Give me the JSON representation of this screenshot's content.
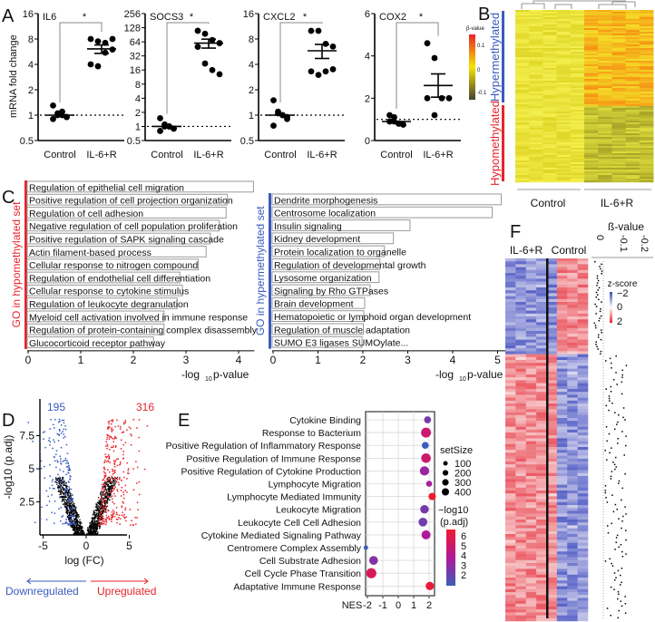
{
  "panels": {
    "A": "A",
    "B": "B",
    "C": "C",
    "D": "D",
    "E": "E",
    "F": "F"
  },
  "chart_data": [
    {
      "id": "A",
      "type": "scatter",
      "ylabel": "mRNA fold change",
      "categories": [
        "Control",
        "IL-6+R"
      ],
      "significance": "*",
      "plots": [
        {
          "title": "IL6",
          "scale": "log2",
          "ylim": [
            0.5,
            16
          ],
          "ticks": [
            "0.5",
            "1",
            "2",
            "4",
            "8",
            "16"
          ],
          "tickvals": [
            0.5,
            1,
            2,
            4,
            8,
            16
          ],
          "control": [
            1.3,
            1.05,
            1,
            0.95,
            0.9,
            1,
            1.1,
            0.95
          ],
          "treated": [
            8,
            7.5,
            7.2,
            8,
            4,
            3.8,
            5.5,
            6
          ],
          "control_mean": 1,
          "treated_mean": 6.1,
          "treated_sem": 0.7
        },
        {
          "title": "SOCS3",
          "scale": "log2",
          "ylim": [
            0.5,
            256
          ],
          "ticks": [
            "0.5",
            "1",
            "2",
            "4",
            "8",
            "16",
            "32",
            "64",
            "128",
            "256"
          ],
          "tickvals": [
            0.5,
            1,
            2,
            4,
            8,
            16,
            32,
            64,
            128,
            256
          ],
          "control": [
            1.5,
            1,
            1,
            0.9,
            0.8,
            1.1,
            1,
            0.9
          ],
          "treated": [
            110,
            95,
            70,
            60,
            50,
            22,
            16,
            13
          ],
          "control_mean": 1,
          "treated_mean": 60,
          "treated_sem": 13
        },
        {
          "title": "CXCL2",
          "scale": "log2",
          "ylim": [
            0.5,
            16
          ],
          "ticks": [
            "0.5",
            "1",
            "2",
            "4",
            "8",
            "16"
          ],
          "tickvals": [
            0.5,
            1,
            2,
            4,
            8,
            16
          ],
          "control": [
            1.5,
            1.1,
            1,
            0.9,
            0.75,
            1.05,
            1,
            0.95
          ],
          "treated": [
            10,
            10,
            7,
            6.5,
            3.3,
            3,
            3.3,
            3.5
          ],
          "control_mean": 1,
          "treated_mean": 5.8,
          "treated_sem": 1.1
        },
        {
          "title": "COX2",
          "scale": "linear",
          "ylim": [
            0,
            6
          ],
          "ticks": [
            "0",
            "2",
            "4",
            "6"
          ],
          "tickvals": [
            0,
            2,
            4,
            6
          ],
          "control": [
            1.2,
            0.9,
            0.8,
            0.75,
            0.9,
            1.1,
            0.8
          ],
          "treated": [
            4.6,
            3.9,
            2,
            2,
            2,
            1.2
          ],
          "control_mean": 0.9,
          "treated_mean": 2.6,
          "treated_sem": 0.55
        }
      ]
    },
    {
      "id": "B",
      "type": "heatmap",
      "legend_title": "β-value",
      "legend_ticks": [
        "0.1",
        "0",
        "-0.1"
      ],
      "row_groups": [
        "Hypermethylated",
        "Hypomethylated"
      ],
      "col_groups": [
        "Control",
        "IL-6+R"
      ]
    },
    {
      "id": "C",
      "type": "bar",
      "xlabel_main": "-log",
      "xlabel_sub": "10",
      "xlabel_end": " p-value",
      "left": {
        "group_label": "GO in hypomethylated set",
        "xticks": [
          "0",
          "1",
          "2",
          "3",
          "4"
        ],
        "categories": [
          "Regulation of epithelial cell migration",
          "Positive regulation of cell projection organization",
          "Regulation of cell adhesion",
          "Negative regulation of cell population proliferation",
          "Positive regulation of SAPK signaling cascade",
          "Actin filament-based process",
          "Cellular response to nitrogen compound",
          "Regulation of endothelial cell differentiation",
          "Cellular response to cytokine stimulus",
          "Regulation of leukocyte degranulation",
          "Myeloid cell activation involved in immune response",
          "Regulation of protein-containing complex disassembly",
          "Glucocorticoid receptor pathway"
        ],
        "values": [
          4.3,
          3.8,
          3.78,
          3.65,
          3.48,
          3.4,
          3.25,
          2.9,
          2.95,
          2.85,
          2.6,
          2.6,
          2.4
        ]
      },
      "right": {
        "group_label": "GO in hypermethylated set",
        "xticks": [
          "0",
          "1",
          "2",
          "3",
          "4",
          "5"
        ],
        "categories": [
          "Dendrite morphogenesis",
          "Centrosome localization",
          "Insulin signaling",
          "Kidney development",
          "Protein localization to organelle",
          "Regulation of developmental growth",
          "Lysosome organization",
          "Signaling by Rho GTPases",
          "Brain development",
          "Hematopoietic or lymphoid organ development",
          "Regulation of muscle adaptation",
          "SUMO E3 ligases SUMOylate..."
        ],
        "values": [
          5.1,
          4.9,
          3.07,
          2.7,
          2.5,
          2.4,
          2.38,
          2.18,
          2.06,
          2.04,
          2.03,
          2.0
        ]
      }
    },
    {
      "id": "D",
      "type": "scatter",
      "title": "volcano",
      "xlabel": "log (FC)",
      "ylabel": "-log10 (p.adj)",
      "xticks": [
        "-5",
        "0",
        "5"
      ],
      "yticks": [
        "2.5",
        "5",
        "7.5"
      ],
      "down_count": "195",
      "up_count": "316",
      "down_label": "Downregulated",
      "up_label": "Upregulated",
      "colors": {
        "down": "#3a5bbf",
        "up": "#e8232a",
        "ns": "#000000"
      }
    },
    {
      "id": "E",
      "type": "scatter",
      "xlabel": "NES",
      "xticks": [
        "-2",
        "-1",
        "0",
        "1",
        "2"
      ],
      "xlim": [
        -2.2,
        2.4
      ],
      "categories": [
        "Cytokine Binding",
        "Response to Bacterium",
        "Positive Regulation of Inflammatory Response",
        "Positive Regulation of Immune Response",
        "Positive Regulation of Cytokine Production",
        "Lymphocyte Migration",
        "Lymphocyte Mediated Immunity",
        "Leukocyte Migration",
        "Leukocyte Cell Cell Adhesion",
        "Cytokine Mediated Signaling Pathway",
        "Centromere Complex Assembly",
        "Cell Substrate Adhesion",
        "Cell Cycle Phase Transition",
        "Adaptative Immune Response"
      ],
      "nes": [
        1.9,
        1.8,
        1.75,
        1.8,
        1.7,
        2.0,
        2.2,
        1.7,
        1.6,
        1.8,
        -2.1,
        -1.6,
        -1.75,
        2.05
      ],
      "setSize": [
        150,
        380,
        150,
        350,
        320,
        100,
        180,
        260,
        280,
        300,
        40,
        280,
        400,
        250
      ],
      "neglog10padj": [
        2.8,
        5.0,
        1.5,
        5.0,
        3.5,
        3.8,
        6.5,
        2.8,
        2.6,
        4.0,
        1.5,
        3.0,
        5.5,
        6.2
      ],
      "size_legend_title": "setSize",
      "size_legend": [
        "100",
        "200",
        "300",
        "400"
      ],
      "color_legend_title": [
        "−log10",
        "(p.adj)"
      ],
      "color_legend": [
        "6",
        "5",
        "4",
        "3",
        "2"
      ]
    },
    {
      "id": "F",
      "type": "heatmap",
      "col_groups": [
        "IL-6+R",
        "Control"
      ],
      "legend_title": "z-score",
      "legend_ticks": [
        "−2",
        "0",
        "2"
      ],
      "beta_title": "ß-value",
      "beta_ticks": [
        "0",
        "-0.1",
        "-0.2"
      ]
    }
  ]
}
